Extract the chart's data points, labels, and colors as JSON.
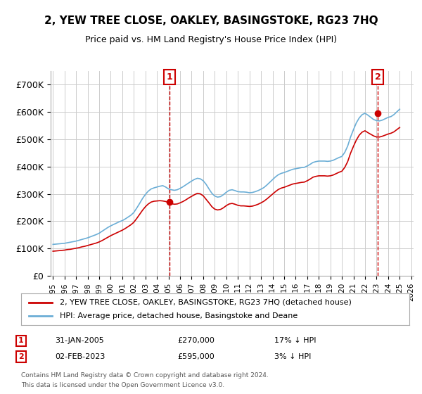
{
  "title": "2, YEW TREE CLOSE, OAKLEY, BASINGSTOKE, RG23 7HQ",
  "subtitle": "Price paid vs. HM Land Registry's House Price Index (HPI)",
  "legend_line1": "2, YEW TREE CLOSE, OAKLEY, BASINGSTOKE, RG23 7HQ (detached house)",
  "legend_line2": "HPI: Average price, detached house, Basingstoke and Deane",
  "annotation1_label": "1",
  "annotation1_date": "31-JAN-2005",
  "annotation1_price": "£270,000",
  "annotation1_hpi": "17% ↓ HPI",
  "annotation1_year": 2005.08,
  "annotation1_value": 270000,
  "annotation2_label": "2",
  "annotation2_date": "02-FEB-2023",
  "annotation2_price": "£595,000",
  "annotation2_hpi": "3% ↓ HPI",
  "annotation2_year": 2023.09,
  "annotation2_value": 595000,
  "footer_line1": "Contains HM Land Registry data © Crown copyright and database right 2024.",
  "footer_line2": "This data is licensed under the Open Government Licence v3.0.",
  "hpi_color": "#6baed6",
  "price_color": "#cc0000",
  "annotation_color": "#cc0000",
  "background_color": "#ffffff",
  "grid_color": "#cccccc",
  "ylim": [
    0,
    750000
  ],
  "yticks": [
    0,
    100000,
    200000,
    300000,
    400000,
    500000,
    600000,
    700000
  ],
  "ytick_labels": [
    "£0",
    "£100K",
    "£200K",
    "£300K",
    "£400K",
    "£500K",
    "£600K",
    "£700K"
  ],
  "hpi_years": [
    1995.0,
    1995.25,
    1995.5,
    1995.75,
    1996.0,
    1996.25,
    1996.5,
    1996.75,
    1997.0,
    1997.25,
    1997.5,
    1997.75,
    1998.0,
    1998.25,
    1998.5,
    1998.75,
    1999.0,
    1999.25,
    1999.5,
    1999.75,
    2000.0,
    2000.25,
    2000.5,
    2000.75,
    2001.0,
    2001.25,
    2001.5,
    2001.75,
    2002.0,
    2002.25,
    2002.5,
    2002.75,
    2003.0,
    2003.25,
    2003.5,
    2003.75,
    2004.0,
    2004.25,
    2004.5,
    2004.75,
    2005.0,
    2005.25,
    2005.5,
    2005.75,
    2006.0,
    2006.25,
    2006.5,
    2006.75,
    2007.0,
    2007.25,
    2007.5,
    2007.75,
    2008.0,
    2008.25,
    2008.5,
    2008.75,
    2009.0,
    2009.25,
    2009.5,
    2009.75,
    2010.0,
    2010.25,
    2010.5,
    2010.75,
    2011.0,
    2011.25,
    2011.5,
    2011.75,
    2012.0,
    2012.25,
    2012.5,
    2012.75,
    2013.0,
    2013.25,
    2013.5,
    2013.75,
    2014.0,
    2014.25,
    2014.5,
    2014.75,
    2015.0,
    2015.25,
    2015.5,
    2015.75,
    2016.0,
    2016.25,
    2016.5,
    2016.75,
    2017.0,
    2017.25,
    2017.5,
    2017.75,
    2018.0,
    2018.25,
    2018.5,
    2018.75,
    2019.0,
    2019.25,
    2019.5,
    2019.75,
    2020.0,
    2020.25,
    2020.5,
    2020.75,
    2021.0,
    2021.25,
    2021.5,
    2021.75,
    2022.0,
    2022.25,
    2022.5,
    2022.75,
    2023.0,
    2023.25,
    2023.5,
    2023.75,
    2024.0,
    2024.25,
    2024.5,
    2024.75,
    2025.0
  ],
  "hpi_values": [
    115000,
    116000,
    117000,
    118000,
    119000,
    121000,
    123000,
    125000,
    127000,
    130000,
    133000,
    136000,
    139000,
    143000,
    147000,
    151000,
    156000,
    163000,
    170000,
    177000,
    183000,
    188000,
    193000,
    198000,
    202000,
    208000,
    215000,
    222000,
    232000,
    248000,
    265000,
    283000,
    298000,
    310000,
    318000,
    322000,
    325000,
    328000,
    330000,
    325000,
    318000,
    315000,
    313000,
    315000,
    320000,
    326000,
    333000,
    340000,
    347000,
    353000,
    357000,
    355000,
    348000,
    335000,
    318000,
    302000,
    292000,
    288000,
    290000,
    297000,
    306000,
    313000,
    315000,
    312000,
    308000,
    307000,
    307000,
    306000,
    304000,
    305000,
    308000,
    312000,
    317000,
    323000,
    332000,
    342000,
    352000,
    362000,
    370000,
    375000,
    378000,
    382000,
    386000,
    390000,
    392000,
    394000,
    396000,
    397000,
    402000,
    408000,
    415000,
    418000,
    420000,
    420000,
    420000,
    419000,
    420000,
    423000,
    428000,
    433000,
    437000,
    452000,
    475000,
    508000,
    535000,
    560000,
    578000,
    590000,
    595000,
    588000,
    580000,
    572000,
    568000,
    567000,
    570000,
    575000,
    580000,
    583000,
    590000,
    600000,
    610000
  ],
  "price_years": [
    1995.0,
    1995.25,
    1995.5,
    1995.75,
    1996.0,
    1996.25,
    1996.5,
    1996.75,
    1997.0,
    1997.25,
    1997.5,
    1997.75,
    1998.0,
    1998.25,
    1998.5,
    1998.75,
    1999.0,
    1999.25,
    1999.5,
    1999.75,
    2000.0,
    2000.25,
    2000.5,
    2000.75,
    2001.0,
    2001.25,
    2001.5,
    2001.75,
    2002.0,
    2002.25,
    2002.5,
    2002.75,
    2003.0,
    2003.25,
    2003.5,
    2003.75,
    2004.0,
    2004.25,
    2004.5,
    2004.75,
    2005.0,
    2005.25,
    2005.5,
    2005.75,
    2006.0,
    2006.25,
    2006.5,
    2006.75,
    2007.0,
    2007.25,
    2007.5,
    2007.75,
    2008.0,
    2008.25,
    2008.5,
    2008.75,
    2009.0,
    2009.25,
    2009.5,
    2009.75,
    2010.0,
    2010.25,
    2010.5,
    2010.75,
    2011.0,
    2011.25,
    2011.5,
    2011.75,
    2012.0,
    2012.25,
    2012.5,
    2012.75,
    2013.0,
    2013.25,
    2013.5,
    2013.75,
    2014.0,
    2014.25,
    2014.5,
    2014.75,
    2015.0,
    2015.25,
    2015.5,
    2015.75,
    2016.0,
    2016.25,
    2016.5,
    2016.75,
    2017.0,
    2017.25,
    2017.5,
    2017.75,
    2018.0,
    2018.25,
    2018.5,
    2018.75,
    2019.0,
    2019.25,
    2019.5,
    2019.75,
    2020.0,
    2020.25,
    2020.5,
    2020.75,
    2021.0,
    2021.25,
    2021.5,
    2021.75,
    2022.0,
    2022.25,
    2022.5,
    2022.75,
    2023.0,
    2023.25,
    2023.5,
    2023.75,
    2024.0,
    2024.25,
    2024.5,
    2024.75,
    2025.0
  ],
  "price_values": [
    90000,
    91000,
    92000,
    93000,
    94000,
    96000,
    97000,
    99000,
    101000,
    103000,
    106000,
    108000,
    111000,
    114000,
    117000,
    120000,
    124000,
    129000,
    135000,
    141000,
    147000,
    152000,
    157000,
    162000,
    167000,
    173000,
    180000,
    187000,
    196000,
    210000,
    225000,
    240000,
    253000,
    263000,
    270000,
    273000,
    274000,
    275000,
    274000,
    272000,
    268000,
    264000,
    262000,
    263000,
    267000,
    272000,
    278000,
    285000,
    291000,
    297000,
    302000,
    300000,
    293000,
    280000,
    267000,
    253000,
    244000,
    241000,
    243000,
    249000,
    257000,
    263000,
    265000,
    262000,
    258000,
    256000,
    256000,
    255000,
    254000,
    255000,
    258000,
    262000,
    267000,
    273000,
    281000,
    290000,
    299000,
    308000,
    316000,
    321000,
    324000,
    328000,
    332000,
    336000,
    338000,
    340000,
    342000,
    343000,
    348000,
    354000,
    361000,
    364000,
    366000,
    366000,
    366000,
    365000,
    366000,
    369000,
    374000,
    379000,
    383000,
    397000,
    418000,
    449000,
    474000,
    497000,
    515000,
    526000,
    531000,
    524000,
    518000,
    512000,
    508000,
    508000,
    511000,
    515000,
    519000,
    522000,
    527000,
    535000,
    543000
  ],
  "xtick_years": [
    1995,
    1996,
    1997,
    1998,
    1999,
    2000,
    2001,
    2002,
    2003,
    2004,
    2005,
    2006,
    2007,
    2008,
    2009,
    2010,
    2011,
    2012,
    2013,
    2014,
    2015,
    2016,
    2017,
    2018,
    2019,
    2020,
    2021,
    2022,
    2023,
    2024,
    2025,
    2026
  ]
}
